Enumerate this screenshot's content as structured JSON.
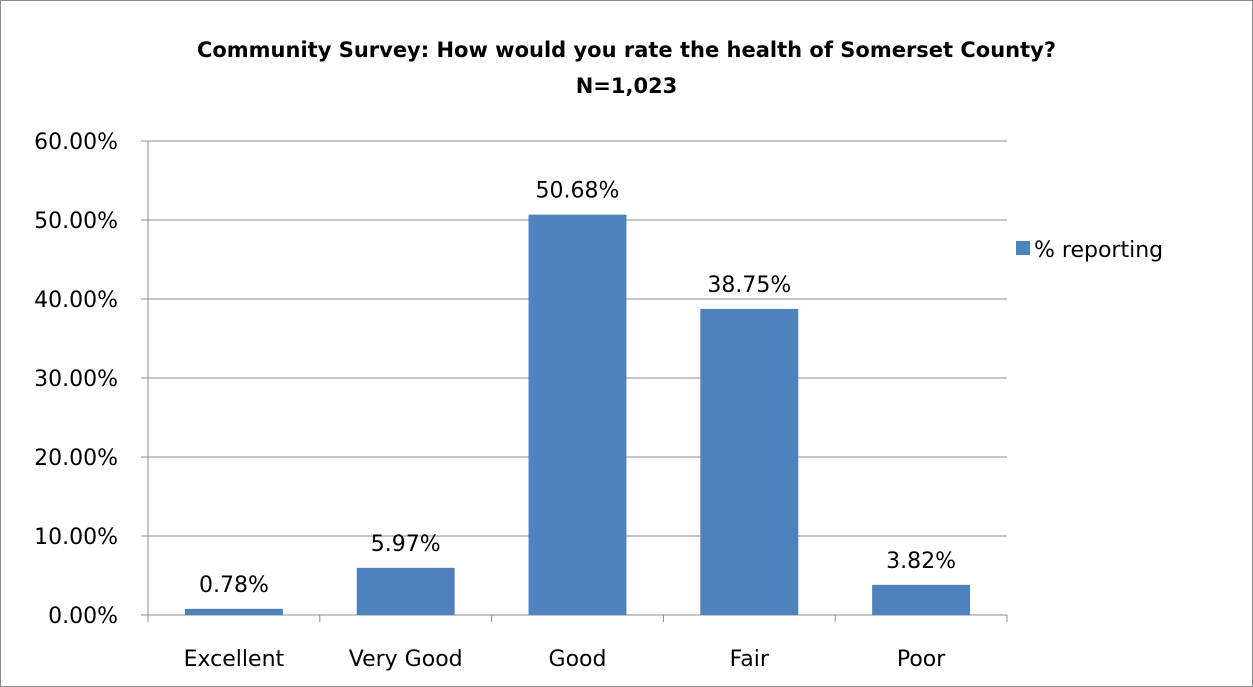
{
  "chart_data": {
    "type": "bar",
    "title": "Community Survey: How would you rate the health of Somerset County?",
    "subtitle": "N=1,023",
    "categories": [
      "Excellent",
      "Very Good",
      "Good",
      "Fair",
      "Poor"
    ],
    "series": [
      {
        "name": "% reporting",
        "values": [
          0.78,
          5.97,
          50.68,
          38.75,
          3.82
        ],
        "color": "#4f81bd"
      }
    ],
    "data_labels": [
      "0.78%",
      "5.97%",
      "50.68%",
      "38.75%",
      "3.82%"
    ],
    "yticks": [
      "0.00%",
      "10.00%",
      "20.00%",
      "30.00%",
      "40.00%",
      "50.00%",
      "60.00%"
    ],
    "ylim": [
      0,
      60
    ],
    "ytick_step": 10,
    "grid": true,
    "legend_position": "right",
    "xlabel": "",
    "ylabel": ""
  }
}
